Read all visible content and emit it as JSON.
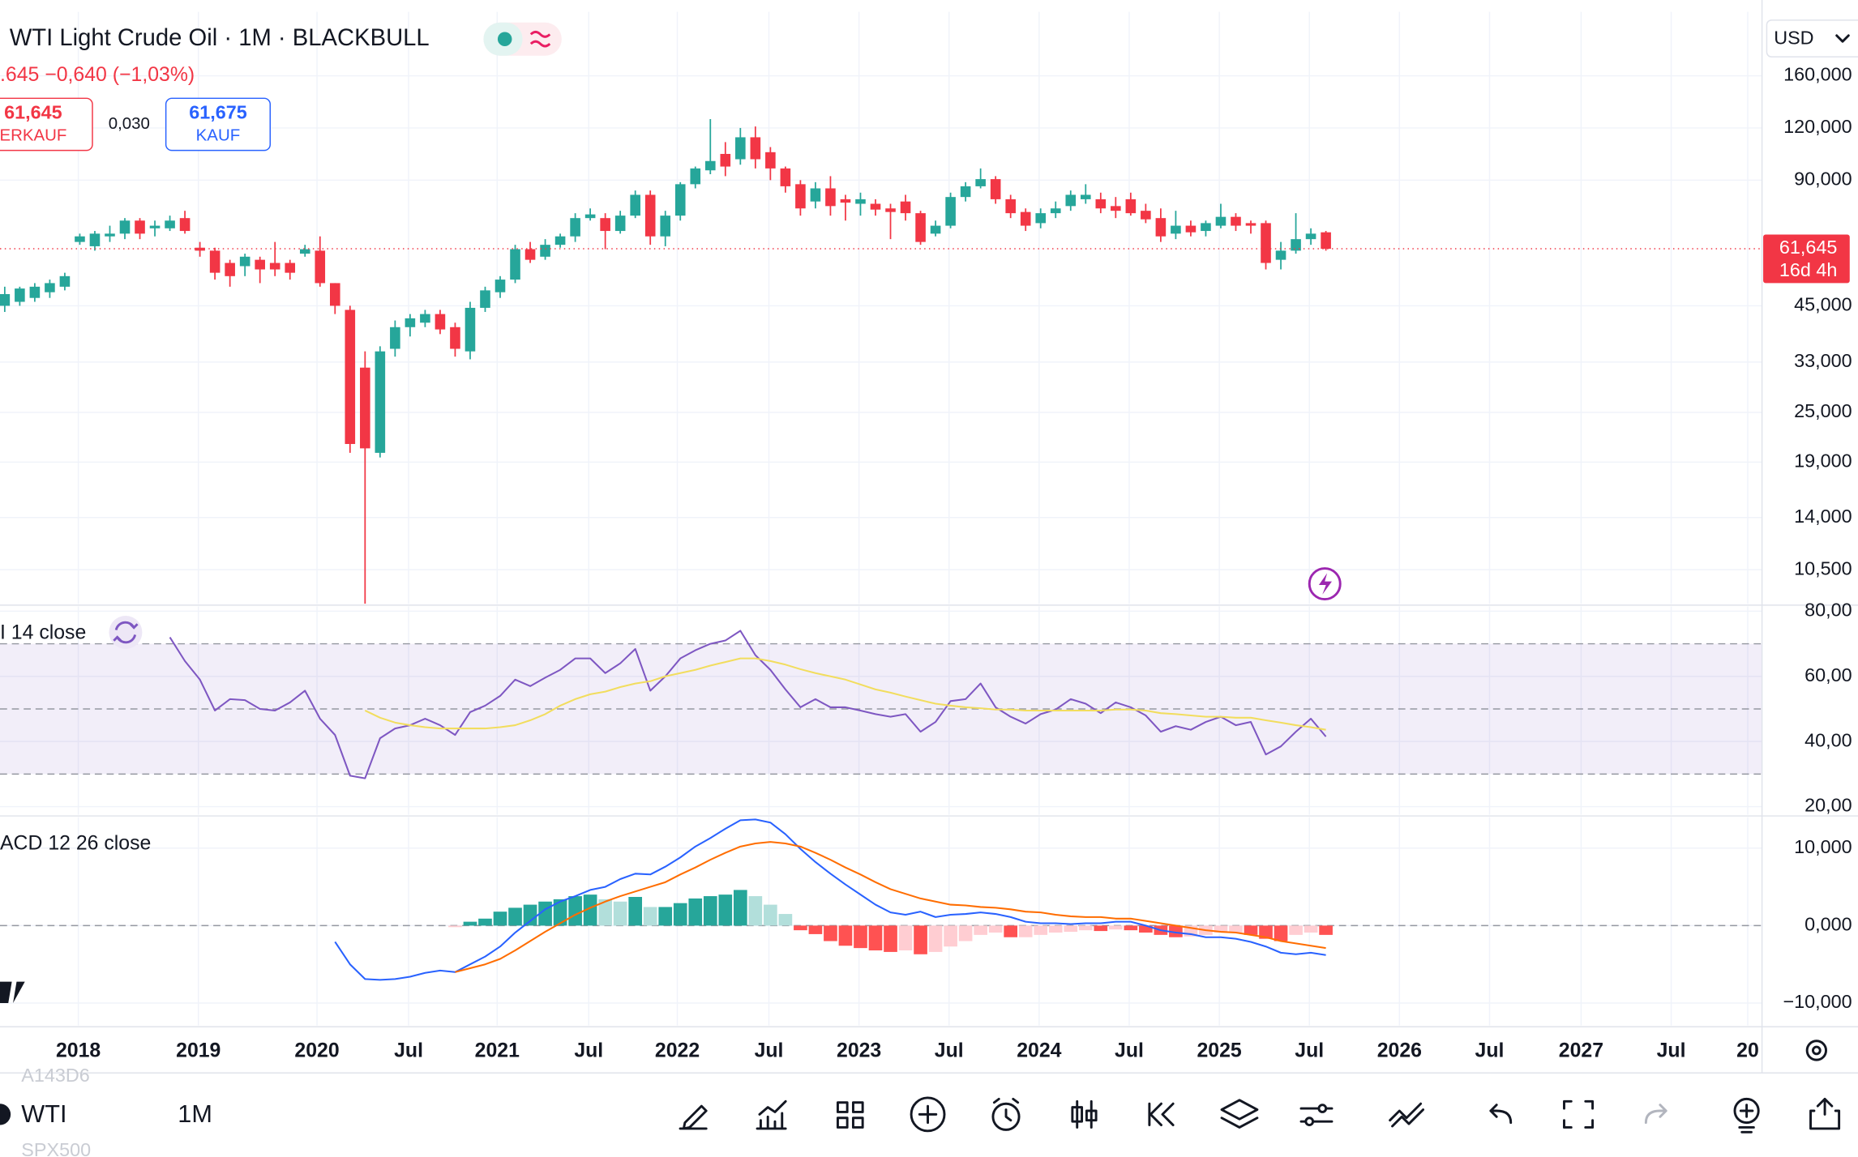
{
  "chart_data": [
    {
      "type": "candlestick",
      "title": "WTI Light Crude Oil · 1M · BLACKBULL",
      "open": [
        45,
        46,
        47,
        48.5,
        50,
        64,
        62.5,
        66,
        67,
        72,
        69,
        69,
        73,
        62,
        61,
        57,
        56,
        58,
        57,
        57,
        60,
        61,
        51,
        44,
        32,
        20,
        35.5,
        40,
        41,
        43,
        40,
        35,
        44.5,
        48.5,
        52,
        61.5,
        59,
        63,
        66,
        73,
        73,
        68,
        74,
        83,
        66,
        74,
        88,
        95,
        104,
        101,
        114,
        105,
        96,
        88,
        80,
        86,
        81,
        79,
        79,
        77,
        80,
        75,
        67,
        70,
        82,
        87,
        90.5,
        81,
        75.5,
        71,
        75,
        78,
        81,
        81,
        78,
        81,
        76,
        73,
        67,
        70,
        68,
        70,
        73.5,
        71,
        71,
        58,
        61,
        65,
        67.5
      ],
      "high": [
        50,
        50,
        51,
        52,
        54,
        67,
        68,
        70,
        73,
        73,
        72,
        74,
        76,
        64,
        62,
        58,
        60,
        59,
        64,
        58,
        63,
        66,
        51,
        45,
        35,
        36,
        41.5,
        43,
        44,
        44,
        41,
        46,
        50,
        53,
        63,
        64,
        65,
        67,
        75,
        77,
        75,
        76,
        85,
        85,
        76,
        89,
        97,
        126,
        111,
        120,
        121,
        108,
        97,
        90,
        89,
        92,
        83,
        84,
        81,
        79,
        83,
        76,
        72,
        84,
        89,
        96,
        92,
        83,
        77,
        77,
        80,
        85,
        88,
        84,
        82,
        84,
        79,
        77,
        76,
        72,
        72,
        79,
        75,
        72,
        72,
        64,
        75,
        69,
        68
      ],
      "low": [
        43.5,
        45,
        46,
        47,
        49,
        63,
        61,
        64,
        65,
        65,
        66,
        68,
        67,
        59,
        52,
        50,
        53,
        51,
        53,
        52,
        59,
        50,
        43,
        20,
        8.7,
        19.5,
        34,
        38,
        40,
        38.5,
        34,
        33.5,
        43.5,
        47,
        51,
        57,
        58,
        62,
        64,
        72,
        61.5,
        67,
        73,
        63,
        62.5,
        72,
        86,
        93,
        92,
        98,
        96,
        90,
        84,
        74,
        77,
        74,
        72,
        74,
        74,
        65,
        72,
        63,
        66,
        69,
        80,
        86,
        79,
        73,
        68,
        69,
        73,
        76,
        79,
        75,
        73,
        74,
        71,
        64,
        65,
        66,
        66,
        69,
        68,
        67,
        55,
        55,
        60,
        63,
        61
      ],
      "close": [
        48,
        49.5,
        50,
        51,
        53,
        66,
        67,
        67,
        72,
        67,
        70,
        72,
        68,
        61,
        54,
        53,
        59,
        55,
        55,
        54,
        61.5,
        51,
        45,
        21,
        20.5,
        35,
        40,
        42,
        43,
        39.5,
        35.5,
        44.5,
        49,
        52,
        61.5,
        58,
        63,
        66,
        73,
        74.5,
        68,
        74,
        83,
        66,
        74,
        88,
        96,
        100,
        97,
        114,
        101,
        96,
        87,
        77,
        86,
        78,
        79.5,
        81,
        76.5,
        75.5,
        75,
        64,
        70,
        82,
        87,
        90.5,
        81,
        75,
        70,
        75,
        77,
        83,
        83,
        77,
        76,
        75,
        72.5,
        66,
        70,
        67.5,
        71,
        73.5,
        70,
        70,
        57,
        61,
        65,
        67,
        61.645
      ],
      "up_color": "#26a69a",
      "down_color": "#f23645",
      "last_price_label": "61,645",
      "countdown": "16d 4h",
      "log_scale": true,
      "grid": true,
      "ylim": [
        8.69,
        227.7
      ],
      "yticks": [
        {
          "value": 160,
          "label": "160,000"
        },
        {
          "value": 120,
          "label": "120,000"
        },
        {
          "value": 90,
          "label": "90,000"
        },
        {
          "value": 45,
          "label": "45,000"
        },
        {
          "value": 33,
          "label": "33,000"
        },
        {
          "value": 25,
          "label": "25,000"
        },
        {
          "value": 19,
          "label": "19,000"
        },
        {
          "value": 14,
          "label": "14,000"
        },
        {
          "value": 10.5,
          "label": "10,500"
        }
      ],
      "xlim": [
        -0.316,
        117.05
      ],
      "xticks": [
        {
          "value": 4.9,
          "label": "2018"
        },
        {
          "value": 12.9,
          "label": "2019"
        },
        {
          "value": 20.8,
          "label": "2020"
        },
        {
          "value": 26.9,
          "label": "Jul"
        },
        {
          "value": 32.8,
          "label": "2021"
        },
        {
          "value": 38.9,
          "label": "Jul"
        },
        {
          "value": 44.8,
          "label": "2022"
        },
        {
          "value": 50.9,
          "label": "Jul"
        },
        {
          "value": 56.9,
          "label": "2023"
        },
        {
          "value": 62.9,
          "label": "Jul"
        },
        {
          "value": 68.9,
          "label": "2024"
        },
        {
          "value": 74.9,
          "label": "Jul"
        },
        {
          "value": 80.9,
          "label": "2025"
        },
        {
          "value": 86.9,
          "label": "Jul"
        },
        {
          "value": 92.9,
          "label": "2026"
        },
        {
          "value": 98.9,
          "label": "Jul"
        },
        {
          "value": 105,
          "label": "2027"
        },
        {
          "value": 111,
          "label": "Jul"
        },
        {
          "value": 116.1,
          "label": "20"
        }
      ]
    },
    {
      "type": "line",
      "title": "I 14 close",
      "series": [
        {
          "color": "#7e57c2",
          "values": [
            null,
            null,
            null,
            null,
            null,
            null,
            null,
            null,
            null,
            null,
            null,
            72,
            64.7,
            59,
            49.5,
            53,
            52.7,
            50,
            49.5,
            52,
            55.6,
            47,
            42,
            29.5,
            28.7,
            41,
            44,
            45,
            47,
            45,
            42,
            49,
            51,
            54,
            59,
            57,
            59.6,
            62,
            65.5,
            65.5,
            61,
            64,
            68.4,
            55.6,
            60,
            65.5,
            68,
            70,
            71,
            74,
            66.5,
            62,
            56,
            50.5,
            53,
            50.5,
            50.5,
            49.5,
            48.4,
            47.6,
            48.4,
            43,
            46,
            52.4,
            53,
            57.8,
            50.5,
            47.6,
            45.5,
            48.4,
            49.8,
            53,
            51.6,
            48.7,
            52,
            50.5,
            48,
            43,
            44.7,
            43.6,
            46,
            47.6,
            45,
            46,
            36,
            38.5,
            43,
            47,
            41.5
          ]
        },
        {
          "color": "#f2dd5e",
          "values": [
            null,
            null,
            null,
            null,
            null,
            null,
            null,
            null,
            null,
            null,
            null,
            null,
            null,
            null,
            null,
            null,
            null,
            null,
            null,
            null,
            null,
            null,
            null,
            null,
            49.5,
            47.3,
            45.8,
            45,
            44.4,
            44,
            44,
            44,
            44,
            44.4,
            45,
            46.5,
            48.4,
            51,
            53,
            54.5,
            55.3,
            56.7,
            57.8,
            58.5,
            60,
            61,
            62,
            63.3,
            64.4,
            65.5,
            65.5,
            64.7,
            63.6,
            62.2,
            61,
            60,
            59,
            57.5,
            56,
            55,
            53.8,
            52.7,
            51.6,
            51,
            50.5,
            50.2,
            49.8,
            49.8,
            49.5,
            49.5,
            49.5,
            49.5,
            49.5,
            49.5,
            49.8,
            49.8,
            49.5,
            48.7,
            48.4,
            48,
            47.6,
            47.6,
            47.3,
            47.3,
            46.5,
            45.8,
            45,
            44.4,
            43.6
          ]
        }
      ],
      "levels": [
        70,
        50,
        30
      ],
      "band_color": "#7e57c2",
      "grid": true,
      "ylim": [
        17.5,
        81.5
      ],
      "yticks": [
        {
          "value": 80,
          "label": "80,00"
        },
        {
          "value": 60,
          "label": "60,00"
        },
        {
          "value": 40,
          "label": "40,00"
        },
        {
          "value": 20,
          "label": "20,00"
        }
      ]
    },
    {
      "type": "macd",
      "title": "ACD 12 26 close",
      "series": [
        {
          "type": "histogram",
          "colors": [
            "#26a69a",
            "#b2dfdb",
            "#ff5252",
            "#ffcdd2"
          ],
          "values": [
            null,
            null,
            null,
            null,
            null,
            null,
            null,
            null,
            null,
            null,
            null,
            null,
            null,
            null,
            null,
            null,
            null,
            null,
            null,
            null,
            null,
            null,
            null,
            null,
            null,
            null,
            null,
            null,
            null,
            null,
            -0.2,
            0.5,
            0.9,
            1.8,
            2.3,
            2.7,
            3.1,
            3.4,
            3.8,
            4.0,
            3.4,
            3.1,
            3.7,
            2.4,
            2.4,
            2.9,
            3.5,
            3.8,
            4.0,
            4.6,
            3.8,
            2.7,
            1.5,
            -0.6,
            -1.1,
            -2.0,
            -2.6,
            -2.9,
            -3.2,
            -3.4,
            -3.2,
            -3.7,
            -3.4,
            -2.7,
            -2.0,
            -1.2,
            -0.9,
            -1.5,
            -1.5,
            -1.2,
            -0.9,
            -0.8,
            -0.6,
            -0.7,
            -0.5,
            -0.6,
            -0.9,
            -1.2,
            -1.5,
            -1.4,
            -1.2,
            -0.9,
            -0.9,
            -1.2,
            -1.7,
            -2.0,
            -1.2,
            -0.9,
            -1.2
          ]
        },
        {
          "color": "#2962ff",
          "values": [
            null,
            null,
            null,
            null,
            null,
            null,
            null,
            null,
            null,
            null,
            null,
            null,
            null,
            null,
            null,
            null,
            null,
            null,
            null,
            null,
            null,
            null,
            -2.1,
            -5,
            -6.9,
            -7,
            -6.9,
            -6.6,
            -6.1,
            -5.8,
            -6,
            -5,
            -4,
            -2.7,
            -0.9,
            0.6,
            2.1,
            3.1,
            3.8,
            4.6,
            5,
            6,
            6.7,
            6.6,
            7.6,
            8.8,
            10.2,
            11.3,
            12.5,
            13.6,
            13.7,
            13.3,
            11.8,
            9.9,
            8.2,
            6.7,
            5.3,
            4,
            2.7,
            1.7,
            1.4,
            1.8,
            1.1,
            1.4,
            1.5,
            1.7,
            1.5,
            1.1,
            0.5,
            0.3,
            0.3,
            0.2,
            0.3,
            0.3,
            0.5,
            0.5,
            0,
            -0.6,
            -0.9,
            -1.1,
            -1.5,
            -1.5,
            -1.7,
            -2.1,
            -2.7,
            -3.5,
            -3.7,
            -3.5,
            -3.8
          ]
        },
        {
          "color": "#ff6d00",
          "values": [
            null,
            null,
            null,
            null,
            null,
            null,
            null,
            null,
            null,
            null,
            null,
            null,
            null,
            null,
            null,
            null,
            null,
            null,
            null,
            null,
            null,
            null,
            null,
            null,
            null,
            null,
            null,
            null,
            null,
            null,
            -6,
            -5.5,
            -5,
            -4.3,
            -3.2,
            -2,
            -0.8,
            0.3,
            1.4,
            2.3,
            3.1,
            3.8,
            4.4,
            5,
            5.6,
            6.6,
            7.5,
            8.5,
            9.4,
            10.2,
            10.6,
            10.8,
            10.6,
            10.2,
            9.4,
            8.5,
            7.5,
            6.6,
            5.6,
            4.7,
            4.1,
            3.5,
            3.1,
            2.7,
            2.6,
            2.4,
            2.3,
            2.1,
            1.8,
            1.7,
            1.4,
            1.2,
            1.1,
            1.1,
            0.9,
            0.9,
            0.6,
            0.3,
            0,
            -0.3,
            -0.6,
            -0.8,
            -0.9,
            -1.2,
            -1.5,
            -2,
            -2.3,
            -2.6,
            -2.9
          ]
        }
      ],
      "levels": [
        0
      ],
      "grid": true,
      "ylim": [
        -12.9,
        14
      ],
      "yticks": [
        {
          "value": 10,
          "label": "10,000"
        },
        {
          "value": 0,
          "label": "0,000"
        },
        {
          "value": -10,
          "label": "−10,000"
        }
      ]
    }
  ],
  "ui": {
    "change": ".645  −0,640 (−1,03%)",
    "sell_price": "61,645",
    "sell_label": "ERKAUF",
    "spread": "0,030",
    "buy_price": "61,675",
    "buy_label": "KAUF",
    "currency": "USD",
    "watch_prev": "A143D6",
    "symbol": "WTI",
    "interval": "1M",
    "watch_next": "SPX500"
  }
}
